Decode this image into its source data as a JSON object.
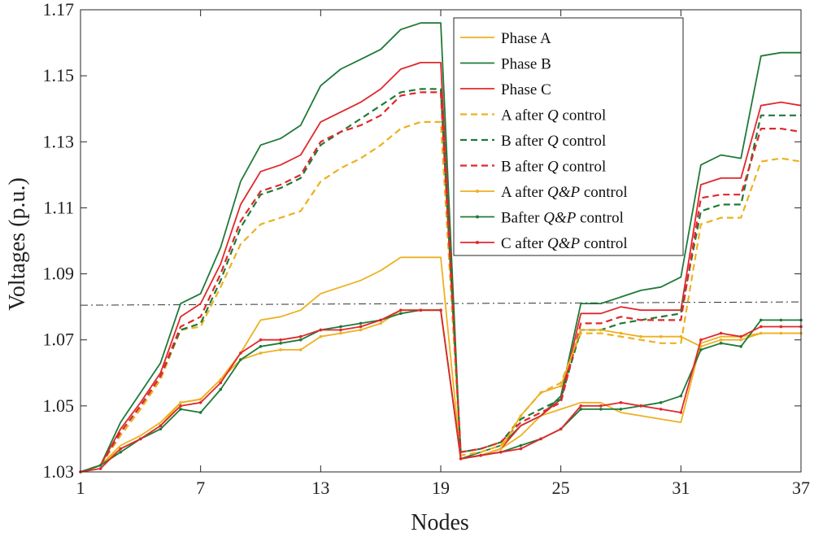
{
  "chart_data": {
    "type": "line",
    "title": "",
    "xlabel": "Nodes",
    "ylabel": "Voltages (p.u.)",
    "xlim": [
      1,
      37
    ],
    "ylim": [
      1.03,
      1.17
    ],
    "x_ticks": [
      1,
      7,
      13,
      19,
      25,
      31,
      37
    ],
    "x_tick_labels": [
      "1",
      "7",
      "13",
      "19",
      "25",
      "31",
      "37"
    ],
    "y_ticks": [
      1.03,
      1.05,
      1.07,
      1.09,
      1.11,
      1.13,
      1.15,
      1.17
    ],
    "y_tick_labels": [
      "1.03",
      "1.05",
      "1.07",
      "1.09",
      "1.11",
      "1.13",
      "1.15",
      "1.17"
    ],
    "x": [
      1,
      2,
      3,
      4,
      5,
      6,
      7,
      8,
      9,
      10,
      11,
      12,
      13,
      14,
      15,
      16,
      17,
      18,
      19,
      20,
      21,
      22,
      23,
      24,
      25,
      26,
      27,
      28,
      29,
      30,
      31,
      32,
      33,
      34,
      35,
      36,
      37
    ],
    "reference_line": {
      "style": "dashdot",
      "color": "#333333",
      "y_start": 1.0805,
      "y_end": 1.0815
    },
    "legend_position": "top-center",
    "series": [
      {
        "name": "Phase A",
        "label_parts": [
          "Phase A"
        ],
        "color": "#EDB120",
        "style": "solid",
        "marker": false,
        "values": [
          1.03,
          1.032,
          1.038,
          1.041,
          1.045,
          1.051,
          1.052,
          1.058,
          1.066,
          1.076,
          1.077,
          1.079,
          1.084,
          1.086,
          1.088,
          1.091,
          1.095,
          1.095,
          1.095,
          1.034,
          1.035,
          1.037,
          1.041,
          1.047,
          1.049,
          1.051,
          1.051,
          1.048,
          1.047,
          1.046,
          1.045,
          1.069,
          1.071,
          1.071,
          1.072,
          1.072,
          1.072
        ]
      },
      {
        "name": "Phase B",
        "label_parts": [
          "Phase B"
        ],
        "color": "#1F7A38",
        "style": "solid",
        "marker": false,
        "values": [
          1.03,
          1.032,
          1.045,
          1.054,
          1.063,
          1.081,
          1.084,
          1.098,
          1.118,
          1.129,
          1.131,
          1.135,
          1.147,
          1.152,
          1.155,
          1.158,
          1.164,
          1.166,
          1.166,
          1.034,
          1.036,
          1.038,
          1.044,
          1.047,
          1.053,
          1.081,
          1.081,
          1.083,
          1.085,
          1.086,
          1.089,
          1.123,
          1.126,
          1.125,
          1.156,
          1.157,
          1.157
        ]
      },
      {
        "name": "Phase C",
        "label_parts": [
          "Phase C"
        ],
        "color": "#E0282B",
        "style": "solid",
        "marker": false,
        "values": [
          1.03,
          1.032,
          1.043,
          1.051,
          1.06,
          1.077,
          1.081,
          1.093,
          1.111,
          1.121,
          1.123,
          1.126,
          1.136,
          1.139,
          1.142,
          1.146,
          1.152,
          1.154,
          1.154,
          1.034,
          1.035,
          1.037,
          1.044,
          1.047,
          1.052,
          1.078,
          1.078,
          1.08,
          1.079,
          1.079,
          1.079,
          1.117,
          1.119,
          1.119,
          1.141,
          1.142,
          1.141
        ]
      },
      {
        "name": "A after Q control",
        "label_parts": [
          "A after ",
          "Q",
          " control"
        ],
        "color": "#EDB120",
        "style": "dashed",
        "marker": false,
        "values": [
          1.03,
          1.032,
          1.041,
          1.049,
          1.058,
          1.073,
          1.074,
          1.086,
          1.099,
          1.105,
          1.107,
          1.109,
          1.118,
          1.122,
          1.125,
          1.129,
          1.134,
          1.136,
          1.136,
          1.035,
          1.036,
          1.038,
          1.047,
          1.054,
          1.057,
          1.072,
          1.072,
          1.071,
          1.07,
          1.069,
          1.069,
          1.105,
          1.107,
          1.107,
          1.124,
          1.125,
          1.124
        ]
      },
      {
        "name": "B after Q control",
        "label_parts": [
          "B after ",
          "Q",
          " control"
        ],
        "color": "#1F7A38",
        "style": "dashed",
        "marker": false,
        "values": [
          1.03,
          1.032,
          1.042,
          1.05,
          1.059,
          1.073,
          1.075,
          1.088,
          1.104,
          1.114,
          1.116,
          1.119,
          1.129,
          1.133,
          1.137,
          1.141,
          1.145,
          1.146,
          1.146,
          1.036,
          1.037,
          1.039,
          1.046,
          1.049,
          1.052,
          1.073,
          1.073,
          1.075,
          1.076,
          1.077,
          1.078,
          1.109,
          1.111,
          1.111,
          1.138,
          1.138,
          1.138
        ]
      },
      {
        "name": "B after Q control (red)",
        "label_parts": [
          "B after ",
          "Q",
          " control"
        ],
        "color": "#E0282B",
        "style": "dashed",
        "marker": false,
        "values": [
          1.03,
          1.032,
          1.042,
          1.05,
          1.059,
          1.074,
          1.077,
          1.09,
          1.106,
          1.115,
          1.117,
          1.12,
          1.13,
          1.133,
          1.135,
          1.138,
          1.144,
          1.145,
          1.145,
          1.036,
          1.037,
          1.039,
          1.045,
          1.048,
          1.051,
          1.075,
          1.075,
          1.077,
          1.076,
          1.076,
          1.076,
          1.113,
          1.114,
          1.114,
          1.134,
          1.134,
          1.133
        ]
      },
      {
        "name": "A after Q&P control",
        "label_parts": [
          "A after ",
          "Q&P",
          " control"
        ],
        "color": "#EDB120",
        "style": "solid",
        "marker": true,
        "values": [
          1.03,
          1.032,
          1.037,
          1.04,
          1.044,
          1.051,
          1.052,
          1.058,
          1.064,
          1.066,
          1.067,
          1.067,
          1.071,
          1.072,
          1.073,
          1.075,
          1.079,
          1.079,
          1.079,
          1.034,
          1.035,
          1.037,
          1.047,
          1.054,
          1.056,
          1.073,
          1.073,
          1.072,
          1.071,
          1.071,
          1.071,
          1.068,
          1.07,
          1.07,
          1.072,
          1.072,
          1.072
        ]
      },
      {
        "name": "Bafter Q&P control",
        "label_parts": [
          "Bafter ",
          "Q&P",
          " control"
        ],
        "color": "#1F7A38",
        "style": "solid",
        "marker": true,
        "values": [
          1.03,
          1.032,
          1.036,
          1.04,
          1.043,
          1.049,
          1.048,
          1.055,
          1.064,
          1.068,
          1.069,
          1.07,
          1.073,
          1.074,
          1.075,
          1.076,
          1.078,
          1.079,
          1.079,
          1.034,
          1.035,
          1.036,
          1.038,
          1.04,
          1.043,
          1.049,
          1.049,
          1.049,
          1.05,
          1.051,
          1.053,
          1.067,
          1.069,
          1.068,
          1.076,
          1.076,
          1.076
        ]
      },
      {
        "name": "C after Q&P control",
        "label_parts": [
          "C after ",
          "Q&P",
          " control"
        ],
        "color": "#E0282B",
        "style": "solid",
        "marker": true,
        "values": [
          1.03,
          1.031,
          1.037,
          1.04,
          1.044,
          1.05,
          1.051,
          1.057,
          1.066,
          1.07,
          1.07,
          1.071,
          1.073,
          1.073,
          1.074,
          1.076,
          1.079,
          1.079,
          1.079,
          1.034,
          1.035,
          1.036,
          1.037,
          1.04,
          1.043,
          1.05,
          1.05,
          1.051,
          1.05,
          1.049,
          1.048,
          1.07,
          1.072,
          1.071,
          1.074,
          1.074,
          1.074
        ]
      }
    ]
  }
}
